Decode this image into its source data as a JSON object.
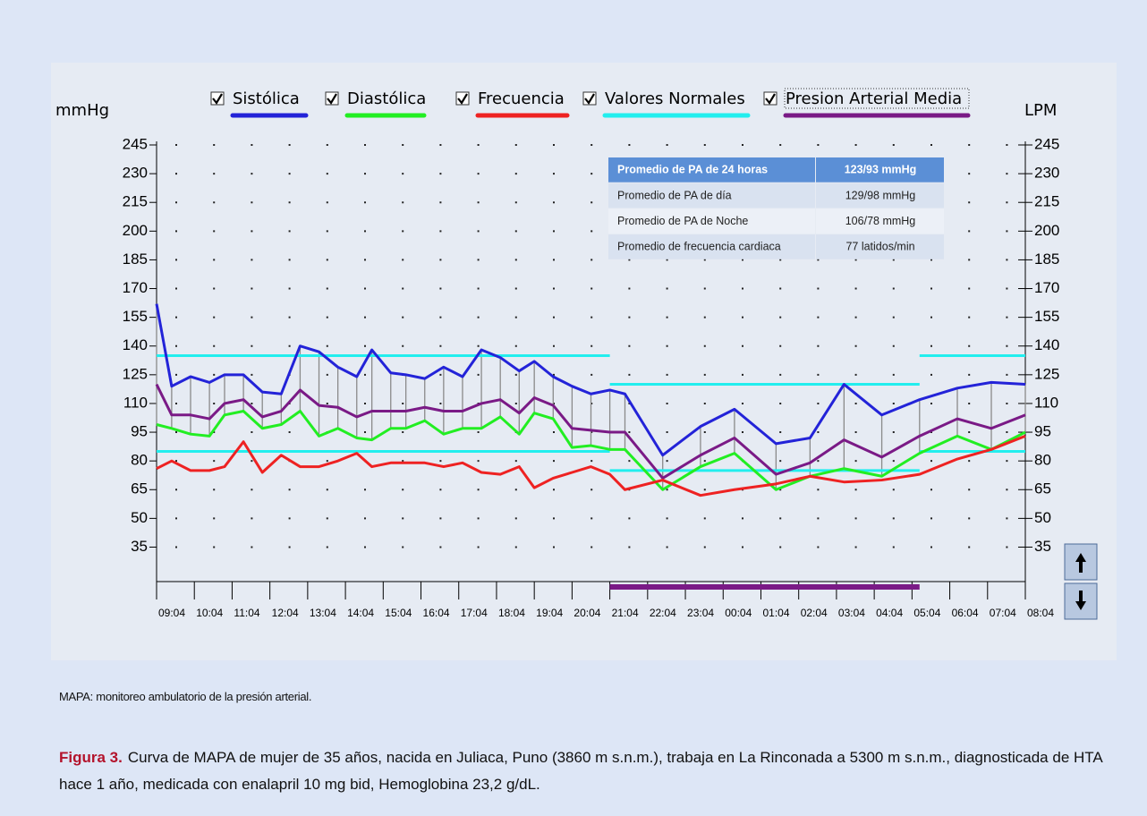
{
  "chart_data": {
    "type": "line",
    "y_label": "mmHg",
    "y2_label": "LPM",
    "xlim": [
      0,
      23
    ],
    "xticks": [
      {
        "value": 0,
        "label": "09:04"
      },
      {
        "value": 1,
        "label": "10:04"
      },
      {
        "value": 2,
        "label": "11:04"
      },
      {
        "value": 3,
        "label": "12:04"
      },
      {
        "value": 4,
        "label": "13:04"
      },
      {
        "value": 5,
        "label": "14:04"
      },
      {
        "value": 6,
        "label": "15:04"
      },
      {
        "value": 7,
        "label": "16:04"
      },
      {
        "value": 8,
        "label": "17:04"
      },
      {
        "value": 9,
        "label": "18:04"
      },
      {
        "value": 10,
        "label": "19:04"
      },
      {
        "value": 11,
        "label": "20:04"
      },
      {
        "value": 12,
        "label": "21:04"
      },
      {
        "value": 13,
        "label": "22:04"
      },
      {
        "value": 14,
        "label": "23:04"
      },
      {
        "value": 15,
        "label": "00:04"
      },
      {
        "value": 16,
        "label": "01:04"
      },
      {
        "value": 17,
        "label": "02:04"
      },
      {
        "value": 18,
        "label": "03:04"
      },
      {
        "value": 19,
        "label": "04:04"
      },
      {
        "value": 20,
        "label": "05:04"
      },
      {
        "value": 21,
        "label": "06:04"
      },
      {
        "value": 22,
        "label": "07:04"
      },
      {
        "value": 23,
        "label": "08:04"
      }
    ],
    "ylim": [
      17,
      245
    ],
    "yticks": [
      35,
      50,
      65,
      80,
      95,
      110,
      125,
      140,
      155,
      170,
      185,
      200,
      215,
      230,
      245
    ],
    "y2lim": [
      17,
      245
    ],
    "y2ticks": [
      35,
      50,
      65,
      80,
      95,
      110,
      125,
      140,
      155,
      170,
      185,
      200,
      215,
      230,
      245
    ],
    "grid": "dots",
    "x": [
      0,
      0.4,
      0.9,
      1.4,
      1.8,
      2.3,
      2.8,
      3.3,
      3.8,
      4.3,
      4.8,
      5.3,
      5.7,
      6.2,
      6.6,
      7.1,
      7.6,
      8.1,
      8.6,
      9.1,
      9.6,
      10.0,
      10.5,
      11.0,
      11.5,
      12.0,
      12.4,
      13.4,
      14.4,
      15.3,
      16.4,
      17.3,
      18.2,
      19.2,
      20.2,
      21.2,
      22.1,
      23.0
    ],
    "series": [
      {
        "name": "Sistólica",
        "color": "#2323d8",
        "values": [
          162,
          119,
          124,
          121,
          125,
          125,
          116,
          115,
          140,
          137,
          129,
          124,
          138,
          126,
          125,
          123,
          129,
          124,
          138,
          134,
          127,
          132,
          124,
          119,
          115,
          117,
          115,
          83,
          98,
          107,
          89,
          92,
          120,
          104,
          112,
          118,
          121,
          120
        ]
      },
      {
        "name": "Diastólica",
        "color": "#22ee22",
        "values": [
          99,
          97,
          94,
          93,
          104,
          106,
          97,
          99,
          106,
          93,
          97,
          92,
          91,
          97,
          97,
          101,
          94,
          97,
          97,
          103,
          94,
          105,
          102,
          87,
          88,
          86,
          86,
          65,
          77,
          84,
          65,
          72,
          76,
          72,
          84,
          93,
          86,
          95
        ]
      },
      {
        "name": "Frecuencia",
        "color": "#ee2222",
        "axis": "y2",
        "values": [
          76,
          80,
          75,
          75,
          77,
          90,
          74,
          83,
          77,
          77,
          80,
          84,
          77,
          79,
          79,
          79,
          77,
          79,
          74,
          73,
          77,
          66,
          71,
          74,
          77,
          73,
          65,
          70,
          62,
          65,
          68,
          72,
          69,
          70,
          73,
          81,
          86,
          93
        ]
      },
      {
        "name": "Valores Normales",
        "color": "#22eeee",
        "x": [
          0,
          12,
          12,
          12,
          20.2,
          20.2,
          20.2,
          23
        ],
        "upper": [
          135,
          135,
          null,
          120,
          120,
          null,
          135,
          135
        ],
        "lower": [
          85,
          85,
          null,
          75,
          75,
          null,
          85,
          85
        ]
      },
      {
        "name": "Presion Arterial Media",
        "color": "#7a1a86",
        "values": [
          120,
          104,
          104,
          102,
          110,
          112,
          103,
          106,
          117,
          109,
          108,
          103,
          106,
          106,
          106,
          108,
          106,
          106,
          110,
          112,
          105,
          113,
          109,
          97,
          96,
          95,
          95,
          71,
          83,
          92,
          73,
          79,
          91,
          82,
          93,
          102,
          97,
          104
        ]
      }
    ],
    "night_period": {
      "from": 12,
      "to": 20.2,
      "color": "#7a1a86"
    },
    "table": {
      "header": [
        "Promedio de PA de 24 horas",
        "123/93 mmHg"
      ],
      "rows": [
        [
          "Promedio de PA de día",
          "129/98 mmHg"
        ],
        [
          "Promedio de PA de Noche",
          "106/78 mmHg"
        ],
        [
          "Promedio de frecuencia cardiaca",
          "77 latidos/min"
        ]
      ]
    }
  },
  "note": "MAPA: monitoreo ambulatorio de la presión arterial.",
  "caption": {
    "label": "Figura 3.",
    "text": "Curva de MAPA de mujer de 35 años, nacida en Juliaca, Puno (3860 m s.n.m.), trabaja en La Rinconada a 5300 m s.n.m., diagnosticada de HTA hace 1 año, medicada con enalapril 10 mg bid, Hemoglobina 23,2 g/dL."
  }
}
